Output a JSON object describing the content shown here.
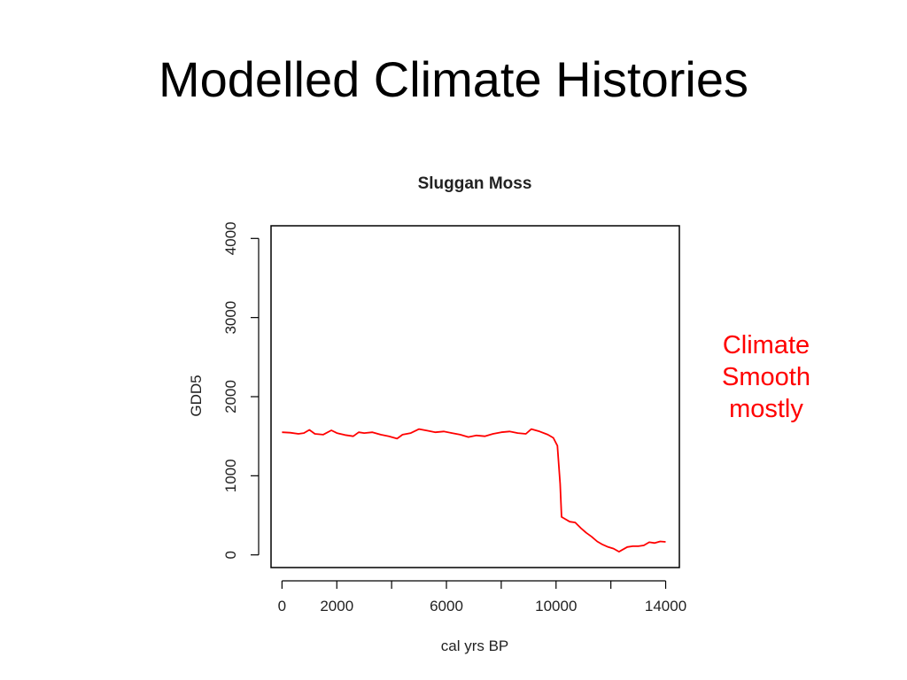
{
  "slide": {
    "title": "Modelled Climate Histories",
    "note_lines": [
      "Climate",
      "Smooth",
      "mostly"
    ]
  },
  "colors": {
    "series": "#ff0000",
    "note": "#ff0000",
    "axis": "#000000"
  },
  "chart_data": {
    "type": "line",
    "title": "Sluggan Moss",
    "xlabel": "cal yrs BP",
    "ylabel": "GDD5",
    "xlim": [
      -400,
      14500
    ],
    "ylim": [
      -160,
      4160
    ],
    "xticks": [
      0,
      2000,
      4000,
      6000,
      8000,
      10000,
      12000,
      14000
    ],
    "xtick_labels": [
      "0",
      "2000",
      "",
      "6000",
      "",
      "10000",
      "",
      "14000"
    ],
    "yticks": [
      0,
      1000,
      2000,
      3000,
      4000
    ],
    "ytick_labels": [
      "0",
      "1000",
      "2000",
      "3000",
      "4000"
    ],
    "grid": false,
    "legend": "none",
    "series": [
      {
        "x": [
          0,
          300,
          600,
          800,
          1000,
          1200,
          1500,
          1800,
          2000,
          2300,
          2600,
          2800,
          3000,
          3300,
          3600,
          3900,
          4200,
          4400,
          4700,
          5000,
          5300,
          5600,
          5900,
          6200,
          6500,
          6800,
          7100,
          7400,
          7700,
          8000,
          8300,
          8600,
          8900,
          9100,
          9400,
          9700,
          9900,
          10050,
          10150,
          10200,
          10300,
          10500,
          10700,
          10900,
          11100,
          11300,
          11500,
          11700,
          11900,
          12100,
          12300,
          12400,
          12600,
          12800,
          13000,
          13200,
          13400,
          13600,
          13800,
          14000
        ],
        "y": [
          1550,
          1545,
          1530,
          1540,
          1580,
          1530,
          1520,
          1575,
          1540,
          1515,
          1500,
          1550,
          1540,
          1550,
          1520,
          1500,
          1470,
          1520,
          1540,
          1590,
          1570,
          1550,
          1560,
          1540,
          1520,
          1490,
          1510,
          1500,
          1530,
          1550,
          1560,
          1540,
          1530,
          1590,
          1560,
          1520,
          1480,
          1380,
          900,
          480,
          460,
          420,
          410,
          340,
          280,
          230,
          170,
          130,
          100,
          80,
          40,
          60,
          100,
          110,
          110,
          120,
          160,
          150,
          170,
          165
        ]
      }
    ]
  }
}
